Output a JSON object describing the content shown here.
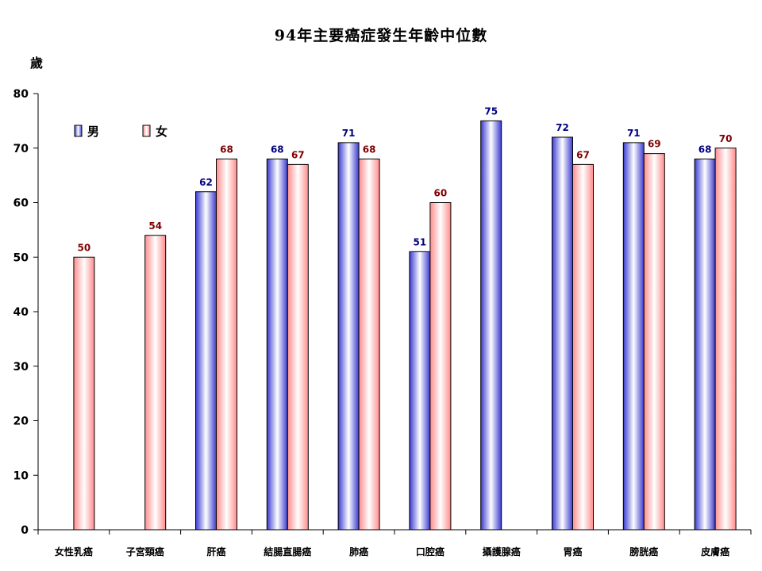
{
  "chart_data": {
    "type": "bar",
    "title": "94年主要癌症發生年齡中位數",
    "ylabel": "歲",
    "xlabel": "",
    "ylim": [
      0,
      80
    ],
    "yticks": [
      0,
      10,
      20,
      30,
      40,
      50,
      60,
      70,
      80
    ],
    "grid": false,
    "legend_position": "top-left",
    "categories": [
      "女性乳癌",
      "子宮頸癌",
      "肝癌",
      "結腸直腸癌",
      "肺癌",
      "口腔癌",
      "攝護腺癌",
      "胃癌",
      "膀胱癌",
      "皮膚癌"
    ],
    "series": [
      {
        "name": "男",
        "color": "#3333cc",
        "label_color": "#000080",
        "values": [
          null,
          null,
          62,
          68,
          71,
          51,
          75,
          72,
          71,
          68
        ]
      },
      {
        "name": "女",
        "color": "#ff9999",
        "label_color": "#800000",
        "values": [
          50,
          54,
          68,
          67,
          68,
          60,
          null,
          67,
          69,
          70
        ]
      }
    ]
  }
}
